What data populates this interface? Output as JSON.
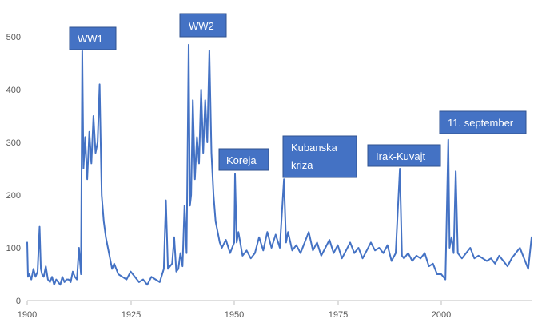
{
  "chart_data": {
    "type": "line",
    "title": "",
    "xlabel": "",
    "ylabel": "",
    "xlim": [
      1900,
      2022
    ],
    "ylim": [
      0,
      500
    ],
    "grid": false,
    "legend": "none",
    "x_ticks": [
      "1900",
      "1925",
      "1950",
      "1975",
      "2000"
    ],
    "y_ticks": [
      "0",
      "100",
      "200",
      "300",
      "400",
      "500"
    ],
    "series_color": "#4472c4",
    "annotation_color": "#4472c4",
    "series": [
      {
        "x": [
          1900.0,
          1900.2,
          1900.5,
          1901.0,
          1901.5,
          1902.0,
          1902.5,
          1903.0,
          1903.3,
          1903.6,
          1904.0,
          1904.5,
          1905.0,
          1905.5,
          1906.0,
          1906.5,
          1907.0,
          1907.5,
          1908.0,
          1908.5,
          1909.0,
          1909.5,
          1910.0,
          1910.5,
          1911.0,
          1911.5,
          1912.0,
          1912.5,
          1913.0,
          1913.3,
          1913.6,
          1914.0,
          1914.5,
          1915.0,
          1915.5,
          1916.0,
          1916.5,
          1917.0,
          1917.5,
          1918.0,
          1918.5,
          1919.0,
          1919.5,
          1920.0,
          1920.5,
          1921.0,
          1922.0,
          1923.0,
          1924.0,
          1925.0,
          1926.0,
          1927.0,
          1928.0,
          1929.0,
          1930.0,
          1931.0,
          1932.0,
          1933.0,
          1933.5,
          1934.0,
          1935.0,
          1935.5,
          1936.0,
          1936.5,
          1937.0,
          1937.5,
          1938.0,
          1938.5,
          1939.0,
          1939.3,
          1939.6,
          1940.0,
          1940.5,
          1941.0,
          1941.5,
          1942.0,
          1942.5,
          1943.0,
          1943.5,
          1944.0,
          1944.5,
          1945.0,
          1945.5,
          1946.0,
          1946.5,
          1947.0,
          1948.0,
          1949.0,
          1950.0,
          1950.2,
          1950.6,
          1951.0,
          1952.0,
          1953.0,
          1954.0,
          1955.0,
          1956.0,
          1957.0,
          1958.0,
          1959.0,
          1960.0,
          1961.0,
          1962.0,
          1962.5,
          1963.0,
          1964.0,
          1965.0,
          1966.0,
          1967.0,
          1968.0,
          1969.0,
          1970.0,
          1971.0,
          1972.0,
          1973.0,
          1974.0,
          1975.0,
          1976.0,
          1977.0,
          1978.0,
          1979.0,
          1980.0,
          1981.0,
          1982.0,
          1983.0,
          1984.0,
          1985.0,
          1986.0,
          1987.0,
          1988.0,
          1989.0,
          1990.0,
          1990.5,
          1991.0,
          1992.0,
          1993.0,
          1994.0,
          1995.0,
          1996.0,
          1997.0,
          1998.0,
          1999.0,
          2000.0,
          2001.0,
          2001.7,
          2002.0,
          2002.5,
          2003.0,
          2003.5,
          2004.0,
          2005.0,
          2006.0,
          2007.0,
          2008.0,
          2009.0,
          2010.0,
          2011.0,
          2012.0,
          2013.0,
          2014.0,
          2015.0,
          2016.0,
          2017.0,
          2018.0,
          2019.0,
          2020.0,
          2021.0,
          2022.0
        ],
        "y": [
          110,
          45,
          50,
          40,
          60,
          45,
          55,
          140,
          60,
          50,
          45,
          65,
          40,
          35,
          45,
          30,
          40,
          35,
          30,
          45,
          35,
          40,
          40,
          35,
          55,
          45,
          40,
          100,
          50,
          473,
          250,
          310,
          230,
          320,
          260,
          350,
          280,
          300,
          410,
          200,
          150,
          120,
          100,
          80,
          60,
          70,
          50,
          45,
          40,
          55,
          45,
          35,
          40,
          30,
          45,
          40,
          35,
          60,
          190,
          60,
          70,
          120,
          55,
          60,
          90,
          65,
          180,
          90,
          485,
          180,
          200,
          380,
          230,
          310,
          260,
          400,
          280,
          380,
          300,
          474,
          280,
          200,
          150,
          130,
          110,
          100,
          115,
          90,
          110,
          240,
          110,
          130,
          85,
          95,
          80,
          90,
          120,
          95,
          130,
          100,
          125,
          100,
          230,
          110,
          130,
          95,
          105,
          90,
          110,
          130,
          95,
          110,
          85,
          100,
          115,
          90,
          105,
          80,
          95,
          110,
          90,
          100,
          80,
          95,
          110,
          95,
          100,
          90,
          105,
          75,
          90,
          250,
          85,
          80,
          90,
          75,
          85,
          80,
          90,
          65,
          70,
          50,
          50,
          40,
          305,
          100,
          120,
          90,
          245,
          90,
          80,
          90,
          100,
          80,
          85,
          80,
          75,
          80,
          70,
          85,
          75,
          65,
          80,
          90,
          100,
          80,
          60,
          120
        ]
      }
    ],
    "annotations": [
      {
        "label": "WW1",
        "lines": [
          "WW1"
        ]
      },
      {
        "label": "WW2",
        "lines": [
          "WW2"
        ]
      },
      {
        "label": "Koreja",
        "lines": [
          "Koreja"
        ]
      },
      {
        "label": "Kubanska kriza",
        "lines": [
          "Kubanska",
          "kriza"
        ]
      },
      {
        "label": "Irak-Kuvajt",
        "lines": [
          "Irak-Kuvajt"
        ]
      },
      {
        "label": "11. september",
        "lines": [
          "11. september"
        ]
      }
    ]
  }
}
